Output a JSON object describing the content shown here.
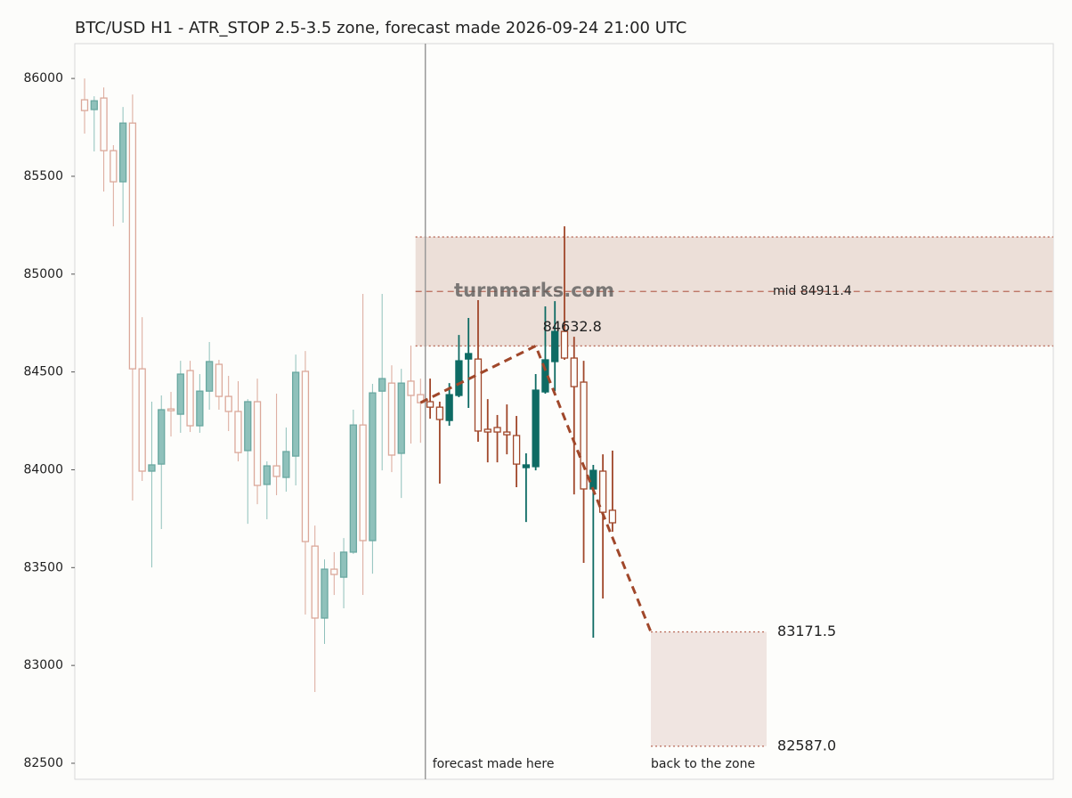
{
  "chart_data": {
    "type": "candlestick",
    "title": "BTC/USD H1 - ATR_STOP 2.5-3.5 zone, forecast made 2026-09-24 21:00 UTC",
    "ylim": [
      82418,
      86178
    ],
    "yticks": [
      82500,
      83000,
      83500,
      84000,
      84500,
      85000,
      85500,
      86000
    ],
    "watermark": "turnmarks.com",
    "history": {
      "up_color": "#8fc1bb",
      "down_color": "#dba89a",
      "open": [
        85891,
        85841,
        85900,
        85631,
        85472,
        85772,
        84516,
        83993,
        84029,
        84311,
        84284,
        84507,
        84225,
        84402,
        84539,
        84375,
        84298,
        84098,
        84348,
        83925,
        84020,
        83961,
        84070,
        84503,
        83610,
        83242,
        83492,
        83451,
        83579,
        84229,
        83638,
        84402,
        84443,
        84084,
        84453,
        84384
      ],
      "high": [
        86000,
        85909,
        85954,
        85659,
        85854,
        85918,
        84780,
        84348,
        84380,
        84398,
        84557,
        84557,
        84489,
        84653,
        84562,
        84480,
        84453,
        84361,
        84466,
        84043,
        84389,
        84216,
        84589,
        84607,
        83715,
        83542,
        83579,
        83651,
        84307,
        84899,
        84439,
        84899,
        84534,
        84516,
        84635,
        84466
      ],
      "low": [
        85718,
        85627,
        85422,
        85244,
        85263,
        83843,
        83943,
        83501,
        83697,
        84170,
        84189,
        84193,
        84189,
        84307,
        84307,
        84198,
        84043,
        83724,
        83824,
        83747,
        83870,
        83888,
        83920,
        83260,
        82864,
        83110,
        83360,
        83292,
        83570,
        83360,
        83469,
        83997,
        83988,
        83856,
        84134,
        84138
      ],
      "close": [
        85836,
        85886,
        85631,
        85472,
        85772,
        84516,
        83993,
        84025,
        84307,
        84302,
        84489,
        84225,
        84402,
        84553,
        84375,
        84298,
        84088,
        84348,
        83920,
        84020,
        83966,
        84093,
        84498,
        83633,
        83242,
        83492,
        83465,
        83579,
        84229,
        83638,
        84393,
        84466,
        84075,
        84443,
        84380,
        84343
      ]
    },
    "forecast": {
      "up_color": "#0e6b64",
      "down_color": "#a0472a",
      "open": [
        84348,
        84320,
        84252,
        84380,
        84566,
        84566,
        84207,
        84216,
        84193,
        84175,
        84011,
        84016,
        84398,
        84553,
        84707,
        84571,
        84448,
        83902,
        83993,
        83793
      ],
      "high": [
        84466,
        84348,
        84443,
        84689,
        84776,
        84867,
        84361,
        84280,
        84334,
        84275,
        84084,
        84489,
        84835,
        84862,
        85244,
        84680,
        84557,
        84025,
        84079,
        84098
      ],
      "low": [
        84261,
        83929,
        84225,
        84371,
        84316,
        84143,
        84038,
        84038,
        84079,
        83911,
        83733,
        83997,
        84389,
        84402,
        84562,
        83874,
        83524,
        83142,
        83342,
        83683
      ],
      "close": [
        84320,
        84257,
        84384,
        84557,
        84594,
        84198,
        84193,
        84193,
        84179,
        84029,
        84025,
        84407,
        84562,
        84707,
        84571,
        84425,
        83902,
        83997,
        83783,
        83729
      ]
    },
    "forecast_label": "forecast made here",
    "forecast_path": {
      "color": "#a0472a",
      "x": [
        35,
        47,
        54,
        59
      ],
      "values": [
        84343,
        84632.8,
        83774,
        83171.5
      ]
    },
    "upper_zone": {
      "color": "#ecdfd8",
      "line_color": "#b86a58",
      "low": 84632.8,
      "high": 85190,
      "mid": 84911.4,
      "mid_label": "mid 84911.4"
    },
    "target_zone": {
      "color": "#f0e5e1",
      "line_color": "#b86a58",
      "values": [
        83171.5,
        82587.0
      ],
      "value_labels": [
        "83171.5",
        "82587.0"
      ],
      "caption": "back to the zone"
    }
  }
}
